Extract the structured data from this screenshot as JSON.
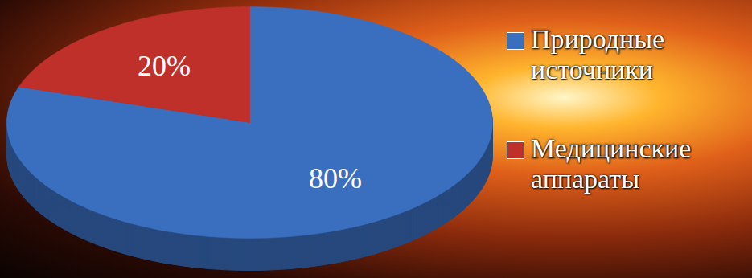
{
  "chart_data": {
    "type": "pie",
    "categories": [
      "Природные источники",
      "Медицинские аппараты"
    ],
    "values": [
      80,
      20
    ],
    "value_labels": [
      "80%",
      "20%"
    ],
    "colors": [
      "#3a6fc0",
      "#c0302a"
    ],
    "data_labels": true,
    "legend": "right"
  }
}
